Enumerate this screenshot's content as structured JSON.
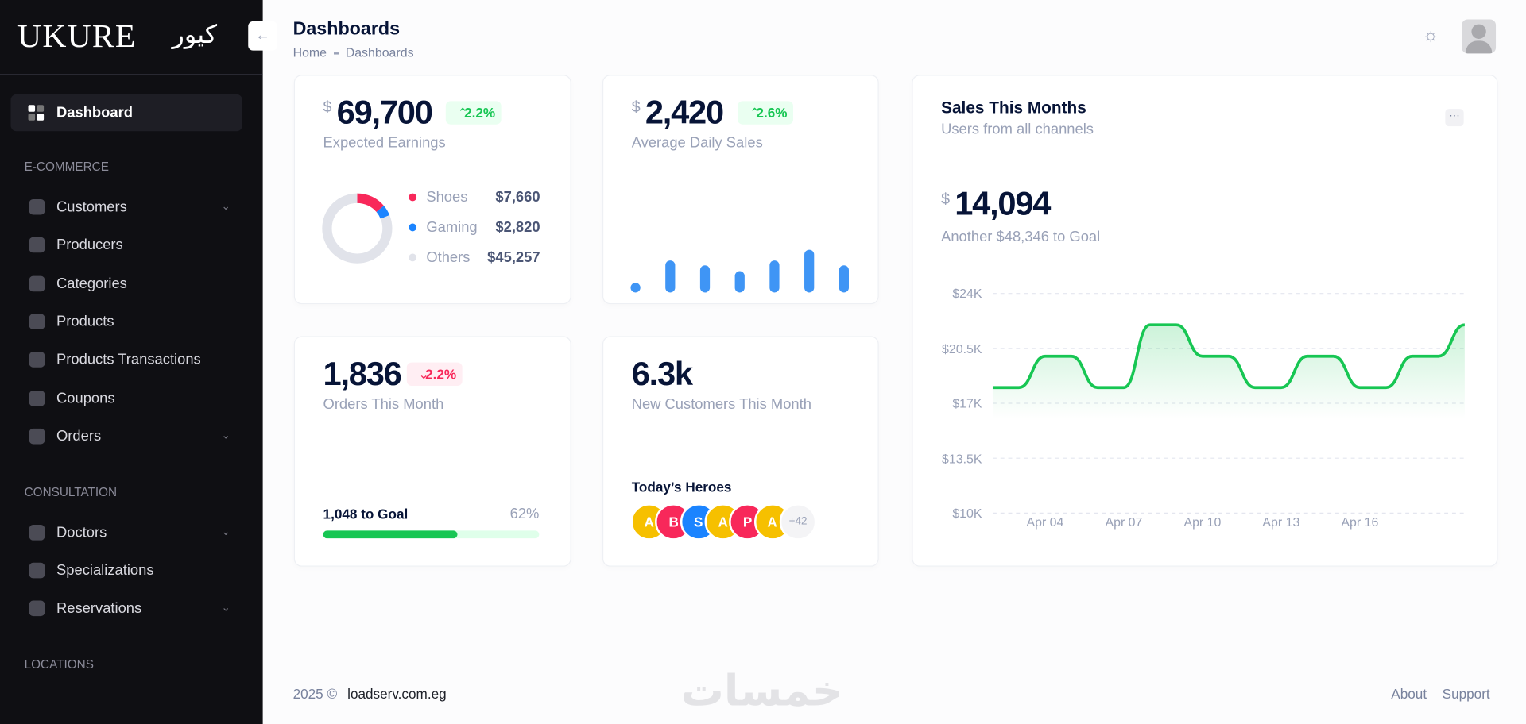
{
  "sidebar": {
    "logo": "UKURE",
    "logo_arabic": "كيور",
    "active_item": "Dashboard",
    "sections": [
      {
        "title": "E-COMMERCE",
        "items": [
          {
            "label": "Customers",
            "expandable": true
          },
          {
            "label": "Producers",
            "expandable": false
          },
          {
            "label": "Categories",
            "expandable": false
          },
          {
            "label": "Products",
            "expandable": false
          },
          {
            "label": "Products Transactions",
            "expandable": false
          },
          {
            "label": "Coupons",
            "expandable": false
          },
          {
            "label": "Orders",
            "expandable": true
          }
        ]
      },
      {
        "title": "CONSULTATION",
        "items": [
          {
            "label": "Doctors",
            "expandable": true
          },
          {
            "label": "Specializations",
            "expandable": false
          },
          {
            "label": "Reservations",
            "expandable": true
          }
        ]
      },
      {
        "title": "LOCATIONS",
        "items": []
      }
    ]
  },
  "header": {
    "title": "Dashboards",
    "breadcrumb": [
      "Home",
      "Dashboards"
    ]
  },
  "earnings": {
    "currency": "$",
    "amount": "69,700",
    "change": "2.2%",
    "trend": "up",
    "label": "Expected Earnings",
    "chart": {
      "type": "pie",
      "categories": [
        "Shoes",
        "Gaming",
        "Others"
      ],
      "values": [
        7660,
        2820,
        45257
      ],
      "value_labels": [
        "$7,660",
        "$2,820",
        "$45,257"
      ],
      "colors": [
        "#f8285a",
        "#1b84ff",
        "#e1e3ea"
      ]
    }
  },
  "daily_sales": {
    "currency": "$",
    "amount": "2,420",
    "change": "2.6%",
    "trend": "up",
    "label": "Average Daily Sales",
    "chart": {
      "type": "bar",
      "values": [
        10,
        33,
        28,
        22,
        33,
        44,
        28
      ],
      "ylim": [
        0,
        50
      ],
      "color": "#3f95f5"
    }
  },
  "sales_month": {
    "title": "Sales This Months",
    "subtitle": "Users from all channels",
    "currency": "$",
    "amount": "14,094",
    "goal_text": "Another $48,346 to Goal",
    "chart": {
      "type": "line",
      "color": "#17c653",
      "grid": true,
      "categories": [
        null,
        null,
        "Apr 04",
        null,
        null,
        "Apr 07",
        null,
        null,
        "Apr 10",
        null,
        null,
        "Apr 13",
        null,
        null,
        "Apr 16",
        null,
        null,
        null,
        null
      ],
      "values": [
        18000,
        18000,
        20000,
        20000,
        18000,
        18000,
        22000,
        22000,
        20000,
        20000,
        18000,
        18000,
        20000,
        20000,
        18000,
        18000,
        20000,
        20000,
        22000
      ],
      "ylim": [
        10000,
        24000
      ],
      "yticks": [
        {
          "value": 10000,
          "label": "$10K"
        },
        {
          "value": 13500,
          "label": "$13.5K"
        },
        {
          "value": 17000,
          "label": "$17K"
        },
        {
          "value": 20500,
          "label": "$20.5K"
        },
        {
          "value": 24000,
          "label": "$24K"
        }
      ]
    }
  },
  "orders": {
    "amount": "1,836",
    "change": "2.2%",
    "trend": "down",
    "label": "Orders This Month",
    "goal_text": "1,048 to Goal",
    "progress": {
      "value": 62,
      "label": "62%"
    }
  },
  "customers": {
    "amount": "6.3k",
    "label": "New Customers This Month",
    "heroes_title": "Today’s Heroes",
    "heroes": [
      {
        "initial": "A",
        "color": "#f6c000"
      },
      {
        "initial": "B",
        "color": "#f8285a"
      },
      {
        "initial": "S",
        "color": "#1b84ff"
      },
      {
        "initial": "A",
        "color": "#f6c000"
      },
      {
        "initial": "P",
        "color": "#f8285a"
      },
      {
        "initial": "A",
        "color": "#f6c000"
      }
    ],
    "more": "+42"
  },
  "footer": {
    "year": "2025 ©",
    "site": "loadserv.com.eg",
    "links": [
      "About",
      "Support"
    ],
    "watermark": "خمسات"
  }
}
